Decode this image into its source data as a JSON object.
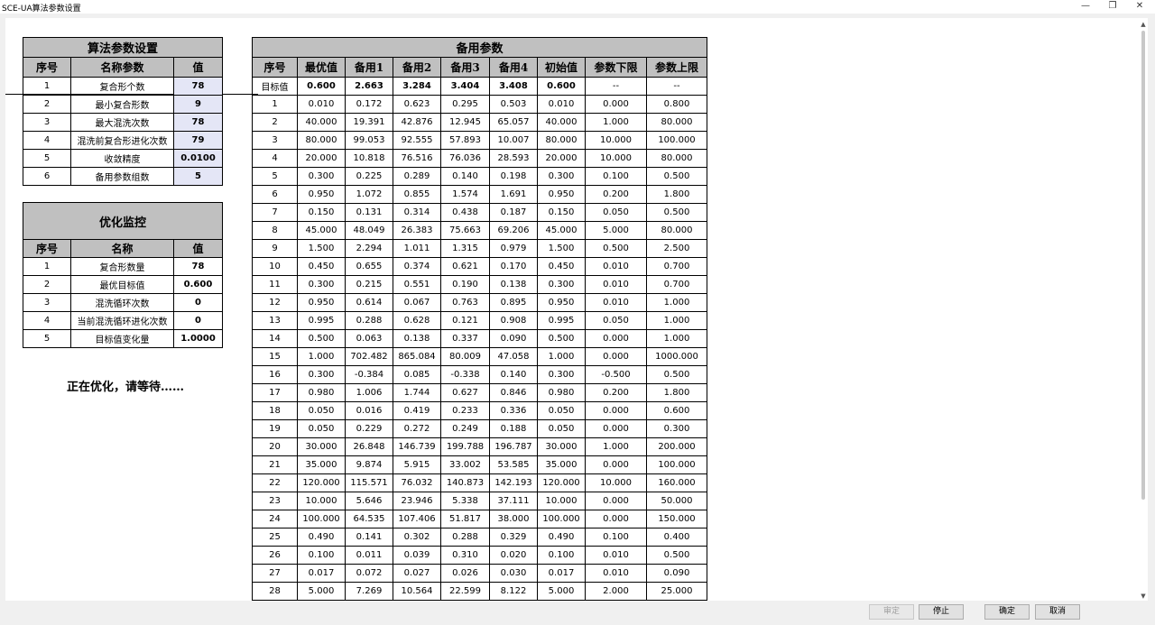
{
  "window": {
    "title": "SCE-UA算法参数设置",
    "minimize": "—",
    "restore": "❐",
    "close": "✕"
  },
  "param_table": {
    "title": "算法参数设置",
    "headers": [
      "序号",
      "名称参数",
      "值"
    ],
    "rows": [
      {
        "idx": "1",
        "name": "复合形个数",
        "value": "78"
      },
      {
        "idx": "2",
        "name": "最小复合形数",
        "value": "9"
      },
      {
        "idx": "3",
        "name": "最大混洗次数",
        "value": "78"
      },
      {
        "idx": "4",
        "name": "混洗前复合形进化次数",
        "value": "79"
      },
      {
        "idx": "5",
        "name": "收敛精度",
        "value": "0.0100"
      },
      {
        "idx": "6",
        "name": "备用参数组数",
        "value": "5"
      }
    ]
  },
  "monitor_table": {
    "title": "优化监控",
    "headers": [
      "序号",
      "名称",
      "值"
    ],
    "rows": [
      {
        "idx": "1",
        "name": "复合形数量",
        "value": "78"
      },
      {
        "idx": "2",
        "name": "最优目标值",
        "value": "0.600"
      },
      {
        "idx": "3",
        "name": "混洗循环次数",
        "value": "0"
      },
      {
        "idx": "4",
        "name": "当前混洗循环进化次数",
        "value": "0"
      },
      {
        "idx": "5",
        "name": "目标值变化量",
        "value": "1.0000"
      }
    ]
  },
  "status_text": "正在优化，请等待……",
  "spare_table": {
    "title": "备用参数",
    "headers": [
      "序号",
      "最优值",
      "备用1",
      "备用2",
      "备用3",
      "备用4",
      "初始值",
      "参数下限",
      "参数上限"
    ],
    "rows": [
      [
        "目标值",
        "0.600",
        "2.663",
        "3.284",
        "3.404",
        "3.408",
        "0.600",
        "--",
        "--"
      ],
      [
        "1",
        "0.010",
        "0.172",
        "0.623",
        "0.295",
        "0.503",
        "0.010",
        "0.000",
        "0.800"
      ],
      [
        "2",
        "40.000",
        "19.391",
        "42.876",
        "12.945",
        "65.057",
        "40.000",
        "1.000",
        "80.000"
      ],
      [
        "3",
        "80.000",
        "99.053",
        "92.555",
        "57.893",
        "10.007",
        "80.000",
        "10.000",
        "100.000"
      ],
      [
        "4",
        "20.000",
        "10.818",
        "76.516",
        "76.036",
        "28.593",
        "20.000",
        "10.000",
        "80.000"
      ],
      [
        "5",
        "0.300",
        "0.225",
        "0.289",
        "0.140",
        "0.198",
        "0.300",
        "0.100",
        "0.500"
      ],
      [
        "6",
        "0.950",
        "1.072",
        "0.855",
        "1.574",
        "1.691",
        "0.950",
        "0.200",
        "1.800"
      ],
      [
        "7",
        "0.150",
        "0.131",
        "0.314",
        "0.438",
        "0.187",
        "0.150",
        "0.050",
        "0.500"
      ],
      [
        "8",
        "45.000",
        "48.049",
        "26.383",
        "75.663",
        "69.206",
        "45.000",
        "5.000",
        "80.000"
      ],
      [
        "9",
        "1.500",
        "2.294",
        "1.011",
        "1.315",
        "0.979",
        "1.500",
        "0.500",
        "2.500"
      ],
      [
        "10",
        "0.450",
        "0.655",
        "0.374",
        "0.621",
        "0.170",
        "0.450",
        "0.010",
        "0.700"
      ],
      [
        "11",
        "0.300",
        "0.215",
        "0.551",
        "0.190",
        "0.138",
        "0.300",
        "0.010",
        "0.700"
      ],
      [
        "12",
        "0.950",
        "0.614",
        "0.067",
        "0.763",
        "0.895",
        "0.950",
        "0.010",
        "1.000"
      ],
      [
        "13",
        "0.995",
        "0.288",
        "0.628",
        "0.121",
        "0.908",
        "0.995",
        "0.050",
        "1.000"
      ],
      [
        "14",
        "0.500",
        "0.063",
        "0.138",
        "0.337",
        "0.090",
        "0.500",
        "0.000",
        "1.000"
      ],
      [
        "15",
        "1.000",
        "702.482",
        "865.084",
        "80.009",
        "47.058",
        "1.000",
        "0.000",
        "1000.000"
      ],
      [
        "16",
        "0.300",
        "-0.384",
        "0.085",
        "-0.338",
        "0.140",
        "0.300",
        "-0.500",
        "0.500"
      ],
      [
        "17",
        "0.980",
        "1.006",
        "1.744",
        "0.627",
        "0.846",
        "0.980",
        "0.200",
        "1.800"
      ],
      [
        "18",
        "0.050",
        "0.016",
        "0.419",
        "0.233",
        "0.336",
        "0.050",
        "0.000",
        "0.600"
      ],
      [
        "19",
        "0.050",
        "0.229",
        "0.272",
        "0.249",
        "0.188",
        "0.050",
        "0.000",
        "0.300"
      ],
      [
        "20",
        "30.000",
        "26.848",
        "146.739",
        "199.788",
        "196.787",
        "30.000",
        "1.000",
        "200.000"
      ],
      [
        "21",
        "35.000",
        "9.874",
        "5.915",
        "33.002",
        "53.585",
        "35.000",
        "0.000",
        "100.000"
      ],
      [
        "22",
        "120.000",
        "115.571",
        "76.032",
        "140.873",
        "142.193",
        "120.000",
        "10.000",
        "160.000"
      ],
      [
        "23",
        "10.000",
        "5.646",
        "23.946",
        "5.338",
        "37.111",
        "10.000",
        "0.000",
        "50.000"
      ],
      [
        "24",
        "100.000",
        "64.535",
        "107.406",
        "51.817",
        "38.000",
        "100.000",
        "0.000",
        "150.000"
      ],
      [
        "25",
        "0.490",
        "0.141",
        "0.302",
        "0.288",
        "0.329",
        "0.490",
        "0.100",
        "0.400"
      ],
      [
        "26",
        "0.100",
        "0.011",
        "0.039",
        "0.310",
        "0.020",
        "0.100",
        "0.010",
        "0.500"
      ],
      [
        "27",
        "0.017",
        "0.072",
        "0.027",
        "0.026",
        "0.030",
        "0.017",
        "0.010",
        "0.090"
      ],
      [
        "28",
        "5.000",
        "7.269",
        "10.564",
        "22.599",
        "8.122",
        "5.000",
        "2.000",
        "25.000"
      ]
    ]
  },
  "buttons": {
    "confirm_disabled": "审定",
    "stop": "停止",
    "ok": "确定",
    "cancel": "取消"
  }
}
